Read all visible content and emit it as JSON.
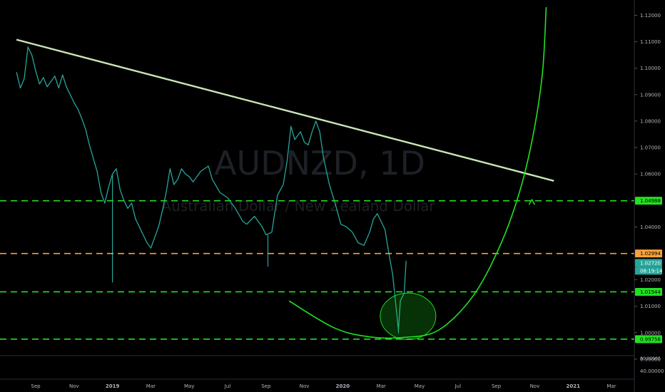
{
  "watermark": {
    "symbol": "AUDNZD, 1D",
    "description": "Australian Dollar / New Zealand Dollar"
  },
  "chart_data": {
    "type": "line",
    "instrument": "AUDNZD",
    "timeframe": "1D",
    "ylim": [
      0.9932,
      1.1231
    ],
    "y_ticks": [
      "1.12000",
      "1.11000",
      "1.10000",
      "1.09000",
      "1.08000",
      "1.07000",
      "1.06000",
      "1.04000",
      "1.02000",
      "1.01000",
      "1.00000",
      "0.99000"
    ],
    "x_ticks": [
      {
        "label": "Sep",
        "t": 0,
        "bold": false
      },
      {
        "label": "Nov",
        "t": 2,
        "bold": false
      },
      {
        "label": "2019",
        "t": 4,
        "bold": true
      },
      {
        "label": "Mar",
        "t": 6,
        "bold": false
      },
      {
        "label": "May",
        "t": 8,
        "bold": false
      },
      {
        "label": "Jul",
        "t": 10,
        "bold": false
      },
      {
        "label": "Sep",
        "t": 12,
        "bold": false
      },
      {
        "label": "Nov",
        "t": 14,
        "bold": false
      },
      {
        "label": "2020",
        "t": 16,
        "bold": true
      },
      {
        "label": "Mar",
        "t": 18,
        "bold": false
      },
      {
        "label": "May",
        "t": 20,
        "bold": false
      },
      {
        "label": "Jul",
        "t": 22,
        "bold": false
      },
      {
        "label": "Sep",
        "t": 24,
        "bold": false
      },
      {
        "label": "Nov",
        "t": 26,
        "bold": false
      },
      {
        "label": "2021",
        "t": 28,
        "bold": true
      },
      {
        "label": "Mar",
        "t": 30,
        "bold": false
      }
    ],
    "price_series": [
      [
        -1.0,
        1.0985
      ],
      [
        -0.8,
        1.0925
      ],
      [
        -0.6,
        1.096
      ],
      [
        -0.4,
        1.108
      ],
      [
        -0.2,
        1.105
      ],
      [
        0.0,
        1.099
      ],
      [
        0.2,
        1.094
      ],
      [
        0.4,
        1.0965
      ],
      [
        0.6,
        1.093
      ],
      [
        0.8,
        1.095
      ],
      [
        1.0,
        1.097
      ],
      [
        1.2,
        1.0925
      ],
      [
        1.4,
        1.0975
      ],
      [
        1.6,
        1.093
      ],
      [
        1.8,
        1.09
      ],
      [
        2.0,
        1.087
      ],
      [
        2.2,
        1.0845
      ],
      [
        2.4,
        1.081
      ],
      [
        2.6,
        1.077
      ],
      [
        2.8,
        1.071
      ],
      [
        3.0,
        1.066
      ],
      [
        3.2,
        1.061
      ],
      [
        3.4,
        1.053
      ],
      [
        3.6,
        1.049
      ],
      [
        3.8,
        1.055
      ],
      [
        4.0,
        1.06
      ],
      [
        4.2,
        1.062
      ],
      [
        4.4,
        1.054
      ],
      [
        4.6,
        1.05
      ],
      [
        4.8,
        1.047
      ],
      [
        5.0,
        1.049
      ],
      [
        5.2,
        1.043
      ],
      [
        5.4,
        1.04
      ],
      [
        5.6,
        1.037
      ],
      [
        5.8,
        1.034
      ],
      [
        6.0,
        1.032
      ],
      [
        6.2,
        1.036
      ],
      [
        6.4,
        1.04
      ],
      [
        6.6,
        1.046
      ],
      [
        6.8,
        1.053
      ],
      [
        7.0,
        1.062
      ],
      [
        7.2,
        1.056
      ],
      [
        7.4,
        1.058
      ],
      [
        7.6,
        1.062
      ],
      [
        7.8,
        1.06
      ],
      [
        8.0,
        1.059
      ],
      [
        8.2,
        1.057
      ],
      [
        8.6,
        1.061
      ],
      [
        9.0,
        1.063
      ],
      [
        9.2,
        1.058
      ],
      [
        9.6,
        1.053
      ],
      [
        10.0,
        1.051
      ],
      [
        10.4,
        1.047
      ],
      [
        10.8,
        1.042
      ],
      [
        11.0,
        1.041
      ],
      [
        11.4,
        1.044
      ],
      [
        11.8,
        1.04
      ],
      [
        12.0,
        1.037
      ],
      [
        12.3,
        1.038
      ],
      [
        12.6,
        1.052
      ],
      [
        12.9,
        1.056
      ],
      [
        13.1,
        1.065
      ],
      [
        13.3,
        1.078
      ],
      [
        13.5,
        1.073
      ],
      [
        13.8,
        1.076
      ],
      [
        14.0,
        1.072
      ],
      [
        14.2,
        1.071
      ],
      [
        14.4,
        1.076
      ],
      [
        14.6,
        1.08
      ],
      [
        14.8,
        1.076
      ],
      [
        15.0,
        1.066
      ],
      [
        15.3,
        1.056
      ],
      [
        15.6,
        1.049
      ],
      [
        15.9,
        1.041
      ],
      [
        16.2,
        1.04
      ],
      [
        16.5,
        1.038
      ],
      [
        16.8,
        1.034
      ],
      [
        17.1,
        1.033
      ],
      [
        17.4,
        1.038
      ],
      [
        17.6,
        1.043
      ],
      [
        17.8,
        1.045
      ],
      [
        18.0,
        1.042
      ],
      [
        18.2,
        1.039
      ],
      [
        18.4,
        1.03
      ],
      [
        18.6,
        1.022
      ],
      [
        18.8,
        1.008
      ],
      [
        18.9,
        1.001
      ],
      [
        19.0,
        1.012
      ],
      [
        19.2,
        1.015
      ],
      [
        19.3,
        1.0272
      ]
    ],
    "spikes": [
      {
        "t": 4.0,
        "low": 1.019
      },
      {
        "t": 12.1,
        "low": 1.025
      },
      {
        "t": 18.9,
        "low": 0.9998
      }
    ],
    "trendline": {
      "from": [
        -1.0,
        1.1108
      ],
      "to": [
        27.0,
        1.0574
      ],
      "color": "#c8e6b4"
    },
    "levels": [
      {
        "value": 1.04988,
        "label": "1.04988",
        "color": "#22e022",
        "style": "dashed"
      },
      {
        "value": 1.02994,
        "label": "1.02994",
        "color": "#f7a23a",
        "style": "dashed"
      },
      {
        "value": 1.01544,
        "label": "1.01544",
        "color": "#22e022",
        "style": "dashed"
      },
      {
        "value": 0.99756,
        "label": "0.99756",
        "color": "#22e022",
        "style": "dashed"
      }
    ],
    "last_price": {
      "value": 1.0272,
      "label": "1.02720",
      "countdown": "08:19:14",
      "color": "#26a69a"
    },
    "ellipse": {
      "center": [
        19.4,
        1.0062
      ],
      "rx_months": 1.45,
      "ry_price": 0.0088,
      "color": "#22e022"
    },
    "projection_curve": {
      "color": "#22e022",
      "points": [
        [
          13.2,
          1.012
        ],
        [
          15.5,
          1.002
        ],
        [
          17.3,
          0.9985
        ],
        [
          19.2,
          0.9982
        ],
        [
          21.0,
          1.001
        ],
        [
          22.8,
          1.014
        ],
        [
          24.2,
          1.033
        ],
        [
          25.2,
          1.053
        ],
        [
          25.9,
          1.074
        ],
        [
          26.4,
          1.098
        ],
        [
          26.6,
          1.1231
        ]
      ]
    },
    "projection_arrow": {
      "at": [
        25.85,
        1.0495
      ],
      "direction": "up"
    },
    "sub_pane": {
      "ticks": [
        "80.00000",
        "40.00000"
      ]
    }
  },
  "colors": {
    "background": "#000000",
    "price_line": "#26a69a",
    "axis_text": "#b2b5be",
    "divider": "#2a2e39"
  }
}
